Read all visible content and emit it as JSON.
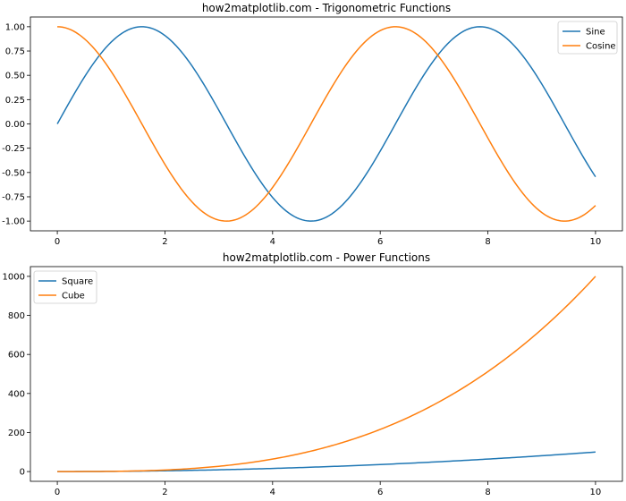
{
  "chart_data": [
    {
      "type": "line",
      "title": "how2matplotlib.com - Trigonometric Functions",
      "xlabel": "",
      "ylabel": "",
      "xlim": [
        -0.5,
        10.5
      ],
      "ylim": [
        -1.1,
        1.1
      ],
      "xticks": [
        0,
        2,
        4,
        6,
        8,
        10
      ],
      "xtick_labels": [
        "0",
        "2",
        "4",
        "6",
        "8",
        "10"
      ],
      "yticks": [
        1.0,
        0.75,
        0.5,
        0.25,
        0.0,
        -0.25,
        -0.5,
        -0.75,
        -1.0
      ],
      "ytick_labels": [
        "1.00",
        "0.75",
        "0.50",
        "0.25",
        "0.00",
        "-0.25",
        "-0.50",
        "-0.75",
        "-1.00"
      ],
      "grid": false,
      "legend_position": "top-right",
      "x": [
        0,
        0.5,
        1,
        1.5,
        2,
        2.5,
        3,
        3.5,
        4,
        4.5,
        5,
        5.5,
        6,
        6.5,
        7,
        7.5,
        8,
        8.5,
        9,
        9.5,
        10
      ],
      "series": [
        {
          "name": "Sine",
          "color": "#1f77b4",
          "values": [
            0,
            0.479,
            0.841,
            0.997,
            0.909,
            0.598,
            0.141,
            -0.351,
            -0.757,
            -0.978,
            -0.959,
            -0.706,
            -0.279,
            0.215,
            0.657,
            0.938,
            0.989,
            0.798,
            0.412,
            -0.075,
            -0.544
          ]
        },
        {
          "name": "Cosine",
          "color": "#ff7f0e",
          "values": [
            1,
            0.878,
            0.54,
            0.071,
            -0.416,
            -0.801,
            -0.99,
            -0.936,
            -0.654,
            -0.211,
            0.284,
            0.709,
            0.96,
            0.977,
            0.754,
            0.347,
            -0.146,
            -0.602,
            -0.911,
            -0.997,
            -0.839
          ]
        }
      ]
    },
    {
      "type": "line",
      "title": "how2matplotlib.com - Power Functions",
      "xlabel": "",
      "ylabel": "",
      "xlim": [
        -0.5,
        10.5
      ],
      "ylim": [
        -50,
        1050
      ],
      "xticks": [
        0,
        2,
        4,
        6,
        8,
        10
      ],
      "xtick_labels": [
        "0",
        "2",
        "4",
        "6",
        "8",
        "10"
      ],
      "yticks": [
        0,
        200,
        400,
        600,
        800,
        1000
      ],
      "ytick_labels": [
        "0",
        "200",
        "400",
        "600",
        "800",
        "1000"
      ],
      "grid": false,
      "legend_position": "top-left",
      "x": [
        0,
        0.5,
        1,
        1.5,
        2,
        2.5,
        3,
        3.5,
        4,
        4.5,
        5,
        5.5,
        6,
        6.5,
        7,
        7.5,
        8,
        8.5,
        9,
        9.5,
        10
      ],
      "series": [
        {
          "name": "Square",
          "color": "#1f77b4",
          "values": [
            0,
            0.25,
            1,
            2.25,
            4,
            6.25,
            9,
            12.25,
            16,
            20.25,
            25,
            30.25,
            36,
            42.25,
            49,
            56.25,
            64,
            72.25,
            81,
            90.25,
            100
          ]
        },
        {
          "name": "Cube",
          "color": "#ff7f0e",
          "values": [
            0,
            0.125,
            1,
            3.375,
            8,
            15.625,
            27,
            42.875,
            64,
            91.125,
            125,
            166.375,
            216,
            274.625,
            343,
            421.875,
            512,
            614.125,
            729,
            857.375,
            1000
          ]
        }
      ]
    }
  ]
}
